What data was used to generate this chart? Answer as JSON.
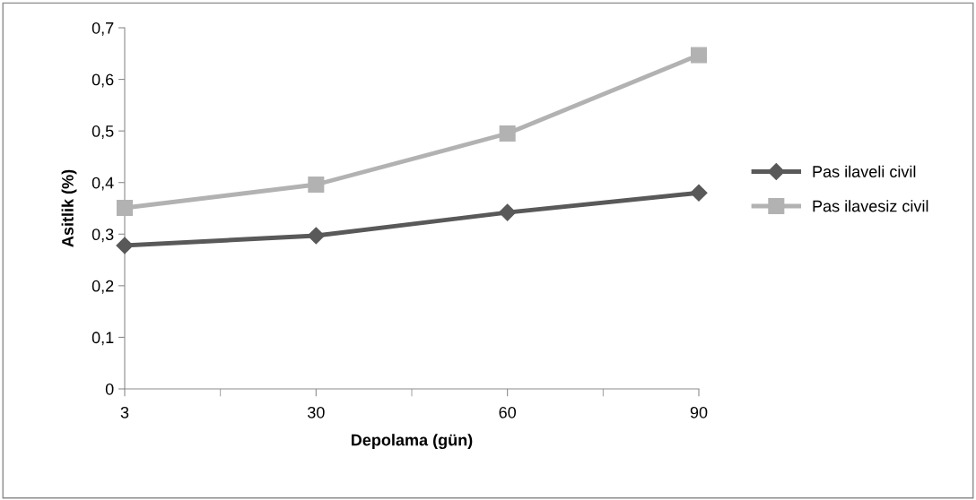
{
  "chart_data": {
    "type": "line",
    "xlabel": "Depolama (gün)",
    "ylabel": "Asitlik (%)",
    "categories": [
      "3",
      "30",
      "60",
      "90"
    ],
    "series": [
      {
        "name": "Pas ilaveli civil",
        "color": "#595959",
        "marker": "diamond",
        "values": [
          0.278,
          0.297,
          0.342,
          0.38
        ]
      },
      {
        "name": "Pas ilavesiz civil",
        "color": "#b2b2b2",
        "marker": "square",
        "values": [
          0.351,
          0.396,
          0.495,
          0.647
        ]
      }
    ],
    "ylim": [
      0,
      0.7
    ],
    "yticks": [
      0,
      {
        "value": 0.1,
        "label": "0,1"
      },
      {
        "value": 0.2,
        "label": "0,2"
      },
      {
        "value": 0.3,
        "label": "0,3"
      },
      {
        "value": 0.4,
        "label": "0,4"
      },
      {
        "value": 0.5,
        "label": "0,5"
      },
      {
        "value": 0.6,
        "label": "0,6"
      },
      {
        "value": 0.7,
        "label": "0,7"
      }
    ],
    "grid": false,
    "legend": "right",
    "line_style": "solid"
  }
}
